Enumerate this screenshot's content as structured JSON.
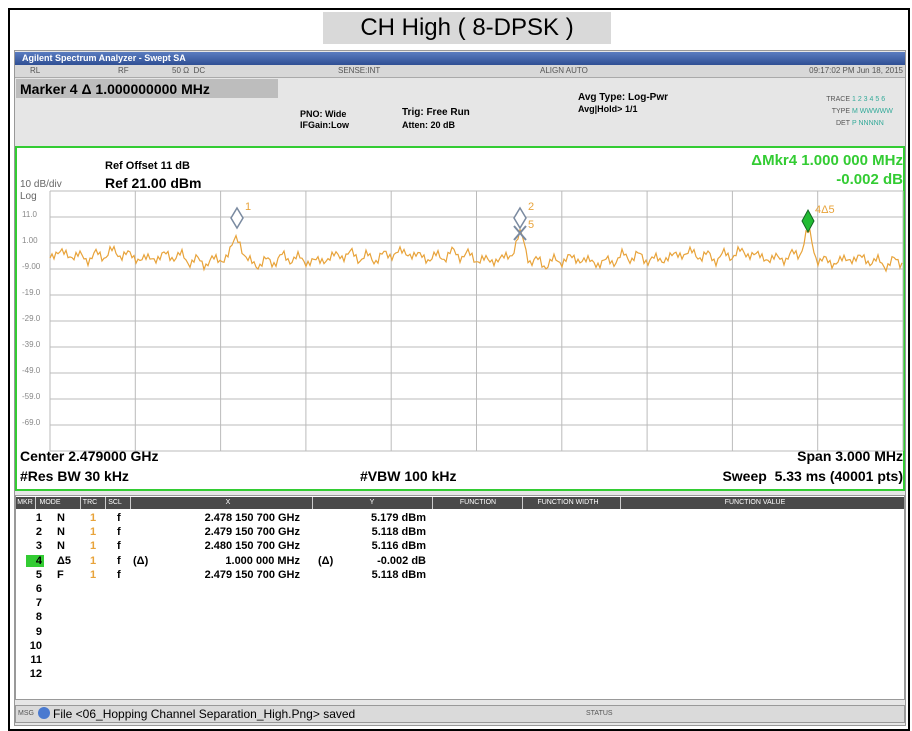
{
  "title": "CH High ( 8-DPSK )",
  "window_title": "Agilent Spectrum Analyzer - Swept SA",
  "status_row": {
    "rl": "RL",
    "rf": "RF",
    "impedance": "50 Ω  DC",
    "sense": "SENSE:INT",
    "align": "ALIGN AUTO",
    "datetime": "09:17:02 PM Jun 18, 2015"
  },
  "settings": {
    "marker": "Marker 4 Δ 1.000000000 MHz",
    "pno": "PNO: Wide",
    "ifgain": "IFGain:Low",
    "trig": "Trig: Free Run",
    "atten": "Atten: 20 dB",
    "avg_type": "Avg Type: Log-Pwr",
    "avg_hold": "Avg|Hold> 1/1",
    "trace_label": "TRACE",
    "trace_values": "1 2 3 4 5 6",
    "type_label": "TYPE",
    "type_values": "M WWWWW",
    "det_label": "DET",
    "det_values": "P NNNNN"
  },
  "graph": {
    "ref_offset": "Ref Offset 11 dB",
    "ref_level": "Ref 21.00 dBm",
    "scale": "10 dB/div",
    "log": "Log",
    "delta_marker": "ΔMkr4 1.000 000 MHz",
    "delta_value": "-0.002 dB",
    "y_labels": [
      "11.0",
      "1.00",
      "-9.00",
      "-19.0",
      "-29.0",
      "-39.0",
      "-49.0",
      "-59.0",
      "-69.0"
    ],
    "markers": [
      "1",
      "2",
      "5",
      "4Δ5"
    ],
    "center": "Center 2.479000 GHz",
    "span": "Span 3.000 MHz",
    "res_bw": "#Res BW 30 kHz",
    "vbw": "#VBW 100 kHz",
    "sweep": "Sweep  5.33 ms (40001 pts)"
  },
  "table": {
    "headers": [
      "MKR",
      "MODE",
      "TRC",
      "SCL",
      "X",
      "Y",
      "FUNCTION",
      "FUNCTION WIDTH",
      "FUNCTION VALUE"
    ],
    "rows": [
      {
        "mkr": "1",
        "mode": "N",
        "trc": "1",
        "scl": "f",
        "x": "2.478 150 700 GHz",
        "y": "5.179 dBm"
      },
      {
        "mkr": "2",
        "mode": "N",
        "trc": "1",
        "scl": "f",
        "x": "2.479 150 700 GHz",
        "y": "5.118 dBm"
      },
      {
        "mkr": "3",
        "mode": "N",
        "trc": "1",
        "scl": "f",
        "x": "2.480 150 700 GHz",
        "y": "5.116 dBm"
      },
      {
        "mkr": "4",
        "mode": "Δ5",
        "trc": "1",
        "scl": "f",
        "scl_ref": "(Δ)",
        "x": "1.000 000 MHz",
        "x_ref": "(Δ)",
        "y": "-0.002 dB"
      },
      {
        "mkr": "5",
        "mode": "F",
        "trc": "1",
        "scl": "f",
        "x": "2.479 150 700 GHz",
        "y": "5.118 dBm"
      },
      {
        "mkr": "6"
      },
      {
        "mkr": "7"
      },
      {
        "mkr": "8"
      },
      {
        "mkr": "9"
      },
      {
        "mkr": "10"
      },
      {
        "mkr": "11"
      },
      {
        "mkr": "12"
      }
    ]
  },
  "message_bar": {
    "msg": "MSG",
    "text": "File <06_Hopping Channel Separation_High.Png> saved",
    "status": "STATUS"
  }
}
